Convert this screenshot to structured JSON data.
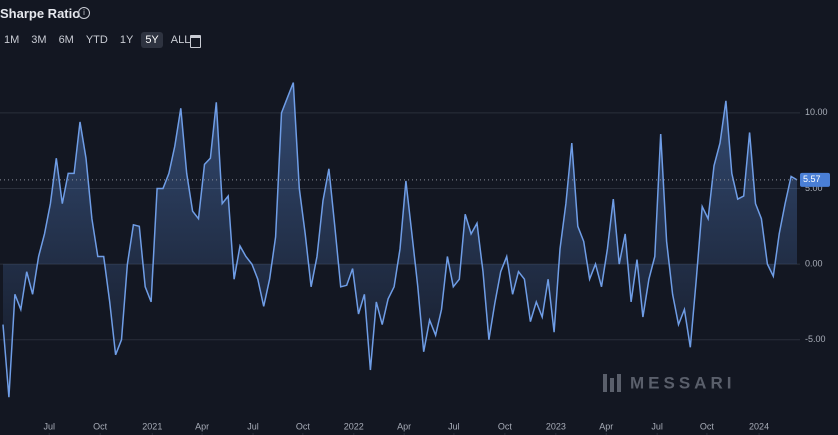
{
  "header": {
    "title": "Sharpe Ratio",
    "range_buttons": [
      "1M",
      "3M",
      "6M",
      "YTD",
      "1Y",
      "5Y",
      "ALL"
    ],
    "active_range": 5
  },
  "watermark": "MESSARI",
  "chart_data": {
    "type": "area",
    "series": [
      {
        "name": "Sharpe Ratio",
        "color": "#6f9de6",
        "values": [
          -4,
          -8.8,
          -2,
          -3,
          -0.5,
          -2,
          0.5,
          2,
          4,
          7,
          4,
          6,
          6,
          9.4,
          7,
          3,
          0.5,
          0.5,
          -2.5,
          -6,
          -5,
          0,
          2.6,
          2.5,
          -1.5,
          -2.5,
          5,
          5,
          6,
          7.8,
          10.3,
          6,
          3.5,
          3,
          6.6,
          7,
          10.7,
          4,
          4.5,
          -1,
          1.2,
          0.5,
          0,
          -1,
          -2.8,
          -1,
          1.8,
          10,
          11,
          12,
          5,
          2,
          -1.5,
          0.5,
          4.2,
          6.3,
          2.5,
          -1.5,
          -1.4,
          -0.3,
          -3.3,
          -2,
          -7,
          -2.5,
          -4,
          -2.3,
          -1.5,
          1,
          5.5,
          2,
          -1.5,
          -5.8,
          -3.7,
          -4.7,
          -3,
          0.5,
          -1.5,
          -1,
          3.3,
          2,
          2.7,
          -0.5,
          -5,
          -2.6,
          -0.5,
          0.5,
          -2,
          -0.5,
          -1,
          -3.8,
          -2.5,
          -3.5,
          -1,
          -4.5,
          1,
          4,
          8,
          2.5,
          1.5,
          -1,
          0,
          -1.5,
          1,
          4.3,
          0,
          2,
          -2.5,
          0.3,
          -3.5,
          -1,
          0.5,
          8.6,
          1.5,
          -2,
          -4,
          -3,
          -5.5,
          -1,
          3.8,
          3,
          6.5,
          8,
          10.8,
          6,
          4.3,
          4.5,
          8.7,
          4,
          3,
          0,
          -0.8,
          2,
          4,
          5.8,
          5.57
        ]
      }
    ],
    "xlim": [
      0,
      134
    ],
    "xticks": [
      {
        "value": 7.8,
        "label": "Jul"
      },
      {
        "value": 16.4,
        "label": "Oct"
      },
      {
        "value": 25.2,
        "label": "2021"
      },
      {
        "value": 33.6,
        "label": "Apr"
      },
      {
        "value": 42.2,
        "label": "Jul"
      },
      {
        "value": 50.6,
        "label": "Oct"
      },
      {
        "value": 59.2,
        "label": "2022"
      },
      {
        "value": 67.7,
        "label": "Apr"
      },
      {
        "value": 76.1,
        "label": "Jul"
      },
      {
        "value": 84.7,
        "label": "Oct"
      },
      {
        "value": 93.3,
        "label": "2023"
      },
      {
        "value": 101.8,
        "label": "Apr"
      },
      {
        "value": 110.4,
        "label": "Jul"
      },
      {
        "value": 118.8,
        "label": "Oct"
      },
      {
        "value": 127.6,
        "label": "2024"
      }
    ],
    "ylim": [
      -11.3,
      12.9
    ],
    "yticks": [
      {
        "value": -5,
        "label": "-5.00"
      },
      {
        "value": 0,
        "label": "0.00"
      },
      {
        "value": 5,
        "label": "5.00"
      },
      {
        "value": 10,
        "label": "10.00"
      }
    ],
    "grid": true
  }
}
